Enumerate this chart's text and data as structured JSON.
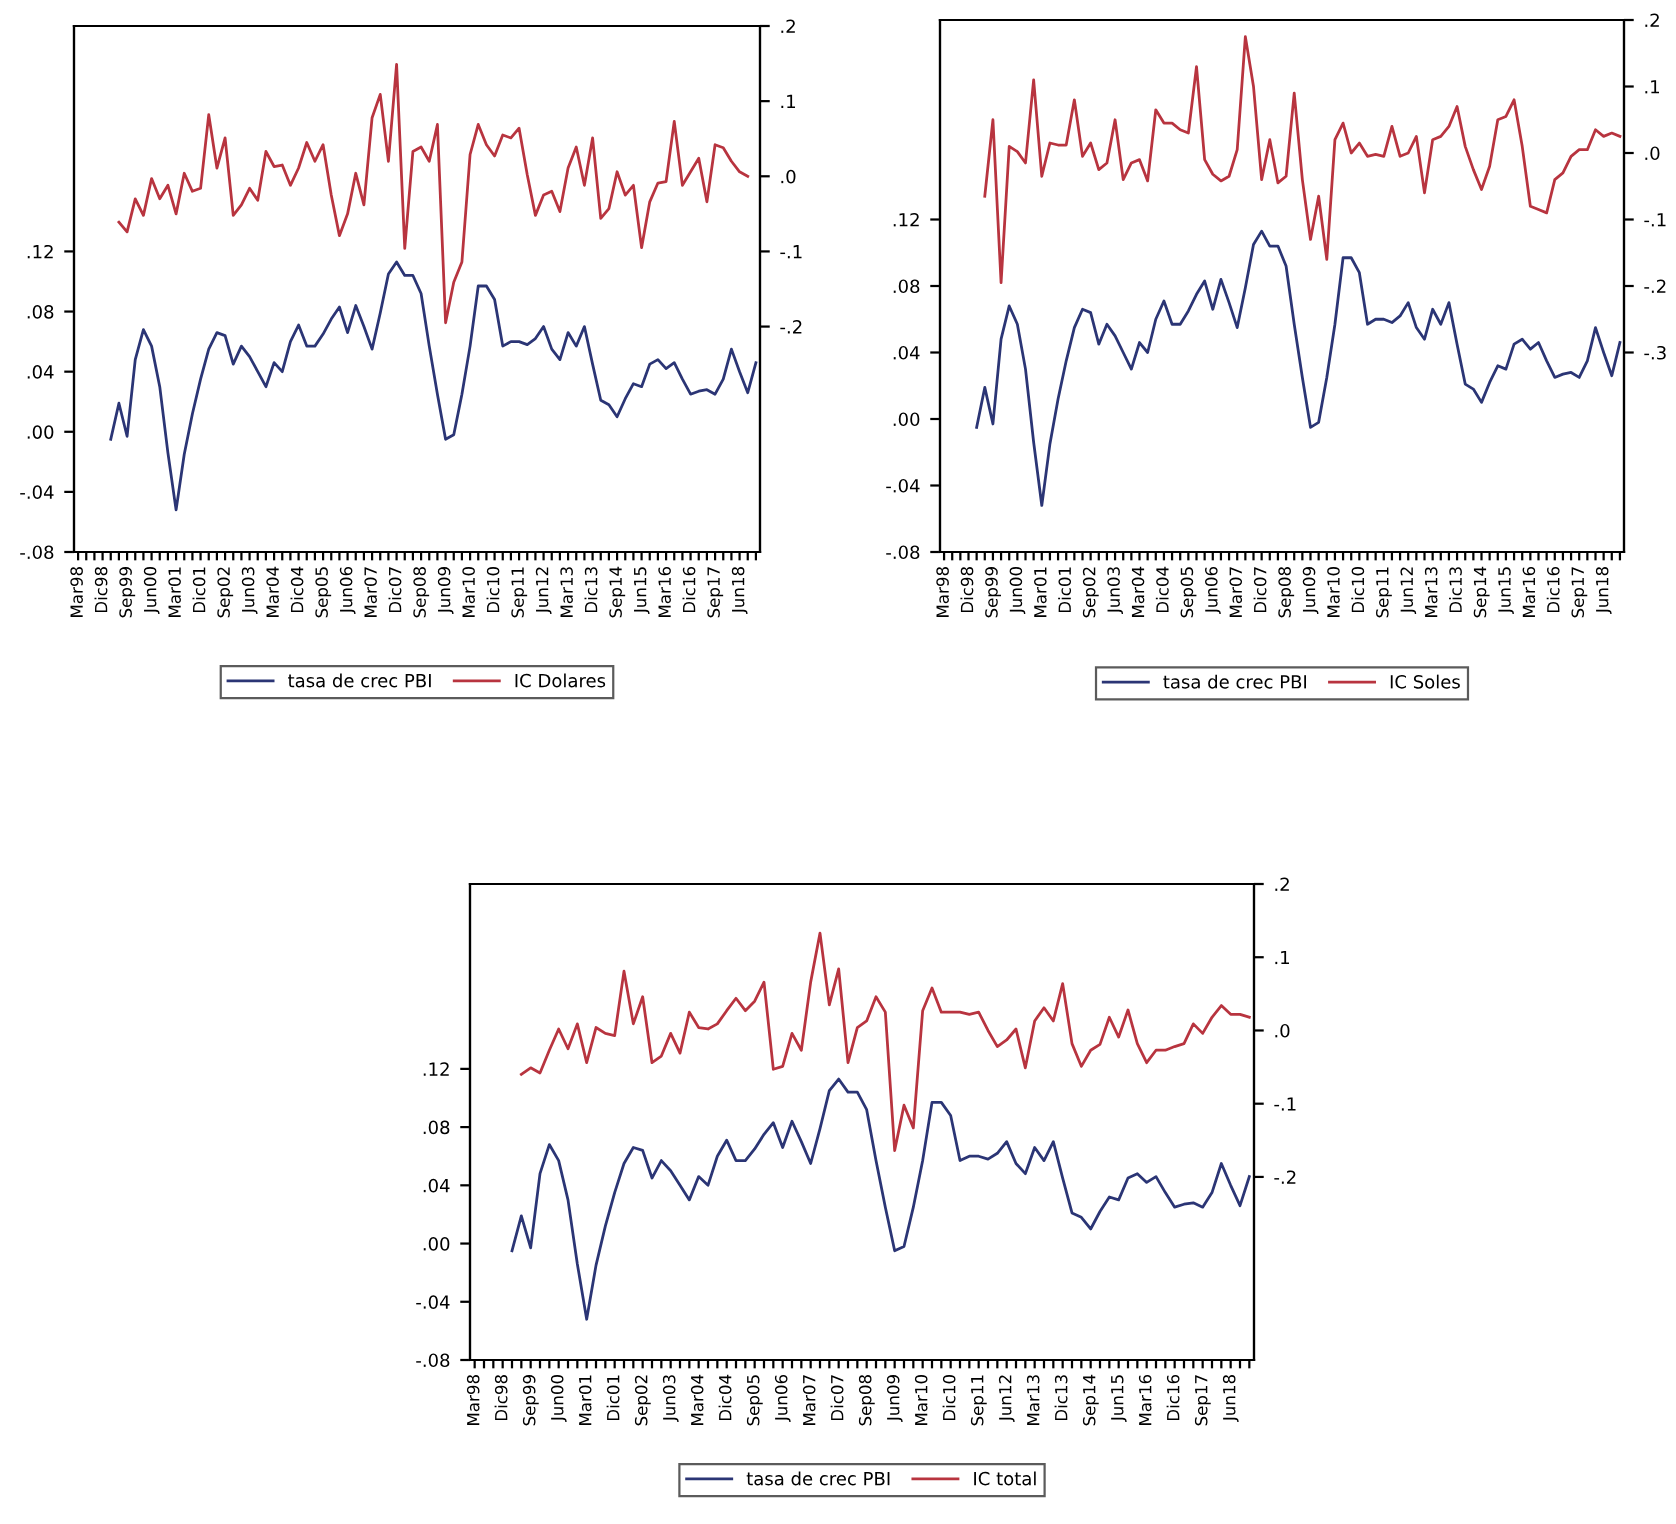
{
  "chart_data": [
    {
      "type": "line",
      "categories": [
        "Mar98",
        null,
        null,
        "Dic98",
        null,
        null,
        "Sep99",
        null,
        null,
        "Jun00",
        null,
        null,
        "Mar01",
        null,
        null,
        "Dic01",
        null,
        null,
        "Sep02",
        null,
        null,
        "Jun03",
        null,
        null,
        "Mar04",
        null,
        null,
        "Dic04",
        null,
        null,
        "Sep05",
        null,
        null,
        "Jun06",
        null,
        null,
        "Mar07",
        null,
        null,
        "Dic07",
        null,
        null,
        "Sep08",
        null,
        null,
        "Jun09",
        null,
        null,
        "Mar10",
        null,
        null,
        "Dic10",
        null,
        null,
        "Sep11",
        null,
        null,
        "Jun12",
        null,
        null,
        "Mar13",
        null,
        null,
        "Dic13",
        null,
        null,
        "Sep14",
        null,
        null,
        "Jun15",
        null,
        null,
        "Mar16",
        null,
        null,
        "Dic16",
        null,
        null,
        "Sep17",
        null,
        null,
        "Jun18",
        null,
        null
      ],
      "series": [
        {
          "name": "tasa de crec PBI",
          "color": "#2b3575",
          "values": [
            null,
            null,
            null,
            null,
            -0.005,
            0.019,
            -0.003,
            0.048,
            0.068,
            0.057,
            0.03,
            -0.014,
            -0.052,
            -0.015,
            0.012,
            0.035,
            0.055,
            0.066,
            0.064,
            0.045,
            0.057,
            0.05,
            0.04,
            0.03,
            0.046,
            0.04,
            0.06,
            0.071,
            0.057,
            0.057,
            0.065,
            0.075,
            0.083,
            0.066,
            0.084,
            0.07,
            0.055,
            0.079,
            0.105,
            0.113,
            0.104,
            0.104,
            0.092,
            0.057,
            0.025,
            -0.005,
            -0.002,
            0.025,
            0.057,
            0.097,
            0.097,
            0.088,
            0.057,
            0.06,
            0.06,
            0.058,
            0.062,
            0.07,
            0.055,
            0.048,
            0.066,
            0.057,
            0.07,
            0.045,
            0.021,
            0.018,
            0.01,
            0.022,
            0.032,
            0.03,
            0.045,
            0.048,
            0.042,
            0.046,
            0.035,
            0.025,
            0.027,
            0.028,
            0.025,
            0.035,
            0.055,
            0.04,
            0.026,
            0.046
          ]
        },
        {
          "name": "IC Dolares",
          "color": "#b8343f",
          "axis": "y2",
          "values": [
            null,
            null,
            null,
            null,
            null,
            -0.061,
            -0.074,
            -0.03,
            -0.052,
            -0.003,
            -0.03,
            -0.012,
            -0.05,
            0.004,
            -0.02,
            -0.016,
            0.082,
            0.011,
            0.051,
            -0.052,
            -0.038,
            -0.016,
            -0.032,
            0.033,
            0.013,
            0.015,
            -0.012,
            0.011,
            0.045,
            0.02,
            0.042,
            -0.025,
            -0.079,
            -0.05,
            0.004,
            -0.038,
            0.078,
            0.109,
            0.02,
            0.149,
            -0.096,
            0.033,
            0.039,
            0.02,
            0.069,
            -0.195,
            -0.141,
            -0.114,
            0.029,
            0.069,
            0.042,
            0.027,
            0.055,
            0.051,
            0.064,
            0.002,
            -0.052,
            -0.025,
            -0.02,
            -0.047,
            0.011,
            0.039,
            -0.012,
            0.051,
            -0.056,
            -0.043,
            0.006,
            -0.025,
            -0.012,
            -0.095,
            -0.034,
            -0.009,
            -0.007,
            0.073,
            -0.012,
            0.006,
            0.024,
            -0.034,
            0.042,
            0.038,
            0.02,
            0.006,
            0.0,
            null
          ]
        }
      ],
      "ylim": [
        -0.08,
        0.27
      ],
      "yticks": [
        {
          "value": -0.08,
          "label": "-.08"
        },
        {
          "value": -0.04,
          "label": "-.04"
        },
        {
          "value": 0.0,
          "label": ".00"
        },
        {
          "value": 0.04,
          "label": ".04"
        },
        {
          "value": 0.08,
          "label": ".08"
        },
        {
          "value": 0.12,
          "label": ".12"
        }
      ],
      "y2lim": [
        -0.5,
        0.2
      ],
      "y2ticks": [
        {
          "value": -0.2,
          "label": "-.2"
        },
        {
          "value": -0.1,
          "label": "-.1"
        },
        {
          "value": 0.0,
          "label": ".0"
        },
        {
          "value": 0.1,
          "label": ".1"
        },
        {
          "value": 0.2,
          "label": ".2"
        }
      ],
      "legend": "bottom",
      "grid": false
    },
    {
      "type": "line",
      "categories": [
        "Mar98",
        null,
        null,
        "Dic98",
        null,
        null,
        "Sep99",
        null,
        null,
        "Jun00",
        null,
        null,
        "Mar01",
        null,
        null,
        "Dic01",
        null,
        null,
        "Sep02",
        null,
        null,
        "Jun03",
        null,
        null,
        "Mar04",
        null,
        null,
        "Dic04",
        null,
        null,
        "Sep05",
        null,
        null,
        "Jun06",
        null,
        null,
        "Mar07",
        null,
        null,
        "Dic07",
        null,
        null,
        "Sep08",
        null,
        null,
        "Jun09",
        null,
        null,
        "Mar10",
        null,
        null,
        "Dic10",
        null,
        null,
        "Sep11",
        null,
        null,
        "Jun12",
        null,
        null,
        "Mar13",
        null,
        null,
        "Dic13",
        null,
        null,
        "Sep14",
        null,
        null,
        "Jun15",
        null,
        null,
        "Mar16",
        null,
        null,
        "Dic16",
        null,
        null,
        "Sep17",
        null,
        null,
        "Jun18",
        null,
        null
      ],
      "series": [
        {
          "name": "tasa de crec PBI",
          "color": "#2b3575",
          "values": [
            null,
            null,
            null,
            null,
            -0.005,
            0.019,
            -0.003,
            0.048,
            0.068,
            0.057,
            0.03,
            -0.014,
            -0.052,
            -0.015,
            0.012,
            0.035,
            0.055,
            0.066,
            0.064,
            0.045,
            0.057,
            0.05,
            0.04,
            0.03,
            0.046,
            0.04,
            0.06,
            0.071,
            0.057,
            0.057,
            0.065,
            0.075,
            0.083,
            0.066,
            0.084,
            0.07,
            0.055,
            0.079,
            0.105,
            0.113,
            0.104,
            0.104,
            0.092,
            0.057,
            0.025,
            -0.005,
            -0.002,
            0.025,
            0.057,
            0.097,
            0.097,
            0.088,
            0.057,
            0.06,
            0.06,
            0.058,
            0.062,
            0.07,
            0.055,
            0.048,
            0.066,
            0.057,
            0.07,
            0.045,
            0.021,
            0.018,
            0.01,
            0.022,
            0.032,
            0.03,
            0.045,
            0.048,
            0.042,
            0.046,
            0.035,
            0.025,
            0.027,
            0.028,
            0.025,
            0.035,
            0.055,
            0.04,
            0.026,
            0.046
          ]
        },
        {
          "name": "IC Soles",
          "color": "#b8343f",
          "axis": "y2",
          "values": [
            null,
            null,
            null,
            null,
            null,
            -0.065,
            0.05,
            -0.195,
            0.01,
            0.002,
            -0.015,
            0.11,
            -0.035,
            0.015,
            0.012,
            0.012,
            0.08,
            -0.005,
            0.015,
            -0.025,
            -0.015,
            0.05,
            -0.04,
            -0.015,
            -0.01,
            -0.042,
            0.065,
            0.045,
            0.045,
            0.035,
            0.03,
            0.13,
            -0.01,
            -0.032,
            -0.042,
            -0.035,
            0.005,
            0.175,
            0.1,
            -0.04,
            0.02,
            -0.045,
            -0.035,
            0.09,
            -0.04,
            -0.13,
            -0.065,
            -0.16,
            0.02,
            0.045,
            0.0,
            0.015,
            -0.005,
            -0.002,
            -0.005,
            0.04,
            -0.005,
            0.0,
            0.025,
            -0.06,
            0.02,
            0.025,
            0.04,
            0.07,
            0.01,
            -0.025,
            -0.055,
            -0.02,
            0.05,
            0.055,
            0.08,
            0.01,
            -0.08,
            -0.085,
            -0.09,
            -0.04,
            -0.03,
            -0.005,
            0.005,
            0.005,
            0.035,
            0.025,
            0.03,
            0.025
          ]
        }
      ],
      "ylim": [
        -0.08,
        0.24
      ],
      "yticks": [
        {
          "value": -0.08,
          "label": "-.08"
        },
        {
          "value": -0.04,
          "label": "-.04"
        },
        {
          "value": 0.0,
          "label": ".00"
        },
        {
          "value": 0.04,
          "label": ".04"
        },
        {
          "value": 0.08,
          "label": ".08"
        },
        {
          "value": 0.12,
          "label": ".12"
        }
      ],
      "y2lim": [
        -0.6,
        0.2
      ],
      "y2ticks": [
        {
          "value": -0.3,
          "label": "-.3"
        },
        {
          "value": -0.2,
          "label": "-.2"
        },
        {
          "value": -0.1,
          "label": "-.1"
        },
        {
          "value": 0.0,
          "label": ".0"
        },
        {
          "value": 0.1,
          "label": ".1"
        },
        {
          "value": 0.2,
          "label": ".2"
        }
      ],
      "legend": "bottom",
      "grid": false
    },
    {
      "type": "line",
      "categories": [
        "Mar98",
        null,
        null,
        "Dic98",
        null,
        null,
        "Sep99",
        null,
        null,
        "Jun00",
        null,
        null,
        "Mar01",
        null,
        null,
        "Dic01",
        null,
        null,
        "Sep02",
        null,
        null,
        "Jun03",
        null,
        null,
        "Mar04",
        null,
        null,
        "Dic04",
        null,
        null,
        "Sep05",
        null,
        null,
        "Jun06",
        null,
        null,
        "Mar07",
        null,
        null,
        "Dic07",
        null,
        null,
        "Sep08",
        null,
        null,
        "Jun09",
        null,
        null,
        "Mar10",
        null,
        null,
        "Dic10",
        null,
        null,
        "Sep11",
        null,
        null,
        "Jun12",
        null,
        null,
        "Mar13",
        null,
        null,
        "Dic13",
        null,
        null,
        "Sep14",
        null,
        null,
        "Jun15",
        null,
        null,
        "Mar16",
        null,
        null,
        "Dic16",
        null,
        null,
        "Sep17",
        null,
        null,
        "Jun18",
        null,
        null
      ],
      "series": [
        {
          "name": "tasa de crec PBI",
          "color": "#2b3575",
          "values": [
            null,
            null,
            null,
            null,
            -0.005,
            0.019,
            -0.003,
            0.048,
            0.068,
            0.057,
            0.03,
            -0.014,
            -0.052,
            -0.015,
            0.012,
            0.035,
            0.055,
            0.066,
            0.064,
            0.045,
            0.057,
            0.05,
            0.04,
            0.03,
            0.046,
            0.04,
            0.06,
            0.071,
            0.057,
            0.057,
            0.065,
            0.075,
            0.083,
            0.066,
            0.084,
            0.07,
            0.055,
            0.079,
            0.105,
            0.113,
            0.104,
            0.104,
            0.092,
            0.057,
            0.025,
            -0.005,
            -0.002,
            0.025,
            0.057,
            0.097,
            0.097,
            0.088,
            0.057,
            0.06,
            0.06,
            0.058,
            0.062,
            0.07,
            0.055,
            0.048,
            0.066,
            0.057,
            0.07,
            0.045,
            0.021,
            0.018,
            0.01,
            0.022,
            0.032,
            0.03,
            0.045,
            0.048,
            0.042,
            0.046,
            0.035,
            0.025,
            0.027,
            0.028,
            0.025,
            0.035,
            0.055,
            0.04,
            0.026,
            0.046
          ]
        },
        {
          "name": "IC total",
          "color": "#b8343f",
          "axis": "y2",
          "values": [
            null,
            null,
            null,
            null,
            null,
            -0.06,
            -0.051,
            -0.058,
            -0.027,
            0.002,
            -0.025,
            0.009,
            -0.044,
            0.004,
            -0.004,
            -0.007,
            0.081,
            0.009,
            0.046,
            -0.044,
            -0.035,
            -0.004,
            -0.031,
            0.025,
            0.004,
            0.002,
            0.009,
            0.027,
            0.044,
            0.027,
            0.04,
            0.066,
            -0.053,
            -0.049,
            -0.004,
            -0.027,
            0.066,
            0.133,
            0.035,
            0.084,
            -0.044,
            0.004,
            0.013,
            0.046,
            0.025,
            -0.164,
            -0.102,
            -0.133,
            0.027,
            0.058,
            0.025,
            0.025,
            0.025,
            0.022,
            0.025,
            0.0,
            -0.022,
            -0.013,
            0.002,
            -0.051,
            0.013,
            0.031,
            0.013,
            0.064,
            -0.018,
            -0.049,
            -0.027,
            -0.019,
            0.018,
            -0.009,
            0.028,
            -0.018,
            -0.044,
            -0.027,
            -0.027,
            -0.022,
            -0.018,
            0.009,
            -0.004,
            0.018,
            0.034,
            0.022,
            0.022,
            0.018
          ]
        }
      ],
      "ylim": [
        -0.08,
        0.247
      ],
      "yticks": [
        {
          "value": -0.08,
          "label": "-.08"
        },
        {
          "value": -0.04,
          "label": "-.04"
        },
        {
          "value": 0.0,
          "label": ".00"
        },
        {
          "value": 0.04,
          "label": ".04"
        },
        {
          "value": 0.08,
          "label": ".08"
        },
        {
          "value": 0.12,
          "label": ".12"
        }
      ],
      "y2lim": [
        -0.45,
        0.2
      ],
      "y2ticks": [
        {
          "value": -0.2,
          "label": "-.2"
        },
        {
          "value": -0.1,
          "label": "-.1"
        },
        {
          "value": 0.0,
          "label": ".0"
        },
        {
          "value": 0.1,
          "label": ".1"
        },
        {
          "value": 0.2,
          "label": ".2"
        }
      ],
      "legend": "bottom",
      "grid": false
    }
  ]
}
